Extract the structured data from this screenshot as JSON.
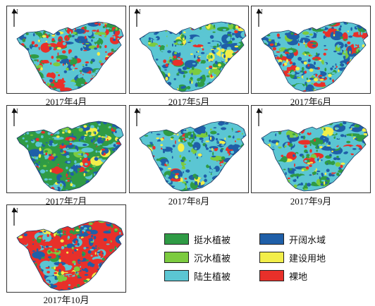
{
  "panels": [
    {
      "caption": "2017年4月",
      "base": "#5bc6d3",
      "north": "N",
      "mix": {
        "emergent": 0.18,
        "submerged": 0.1,
        "terrestrial": 0.27,
        "water": 0.18,
        "construction": 0.05,
        "bare": 0.22
      }
    },
    {
      "caption": "2017年5月",
      "base": "#5bc6d3",
      "north": "N",
      "mix": {
        "emergent": 0.16,
        "submerged": 0.06,
        "terrestrial": 0.42,
        "water": 0.22,
        "construction": 0.09,
        "bare": 0.05
      }
    },
    {
      "caption": "2017年6月",
      "base": "#5bc6d3",
      "north": "N",
      "mix": {
        "emergent": 0.12,
        "submerged": 0.06,
        "terrestrial": 0.34,
        "water": 0.3,
        "construction": 0.07,
        "bare": 0.11
      }
    },
    {
      "caption": "2017年7月",
      "base": "#2f9b45",
      "north": "N",
      "mix": {
        "emergent": 0.22,
        "submerged": 0.07,
        "terrestrial": 0.24,
        "water": 0.27,
        "construction": 0.06,
        "bare": 0.14
      }
    },
    {
      "caption": "2017年8月",
      "base": "#5bc6d3",
      "north": "N",
      "mix": {
        "emergent": 0.13,
        "submerged": 0.05,
        "terrestrial": 0.44,
        "water": 0.24,
        "construction": 0.08,
        "bare": 0.06
      }
    },
    {
      "caption": "2017年9月",
      "base": "#5bc6d3",
      "north": "N",
      "mix": {
        "emergent": 0.21,
        "submerged": 0.06,
        "terrestrial": 0.33,
        "water": 0.26,
        "construction": 0.06,
        "bare": 0.08
      }
    },
    {
      "caption": "2017年10月",
      "base": "#e8302a",
      "north": "N",
      "mix": {
        "emergent": 0.14,
        "submerged": 0.05,
        "terrestrial": 0.14,
        "water": 0.27,
        "construction": 0.06,
        "bare": 0.34
      }
    }
  ],
  "legend": [
    {
      "key": "emergent",
      "label": "挺水植被",
      "color": "#2f9b45"
    },
    {
      "key": "water",
      "label": "开阔水域",
      "color": "#1f5fa8"
    },
    {
      "key": "submerged",
      "label": "沉水植被",
      "color": "#7ccb3f"
    },
    {
      "key": "construction",
      "label": "建设用地",
      "color": "#f2ee4a"
    },
    {
      "key": "terrestrial",
      "label": "陆生植被",
      "color": "#5bc6d3"
    },
    {
      "key": "bare",
      "label": "裸地",
      "color": "#e8302a"
    }
  ]
}
